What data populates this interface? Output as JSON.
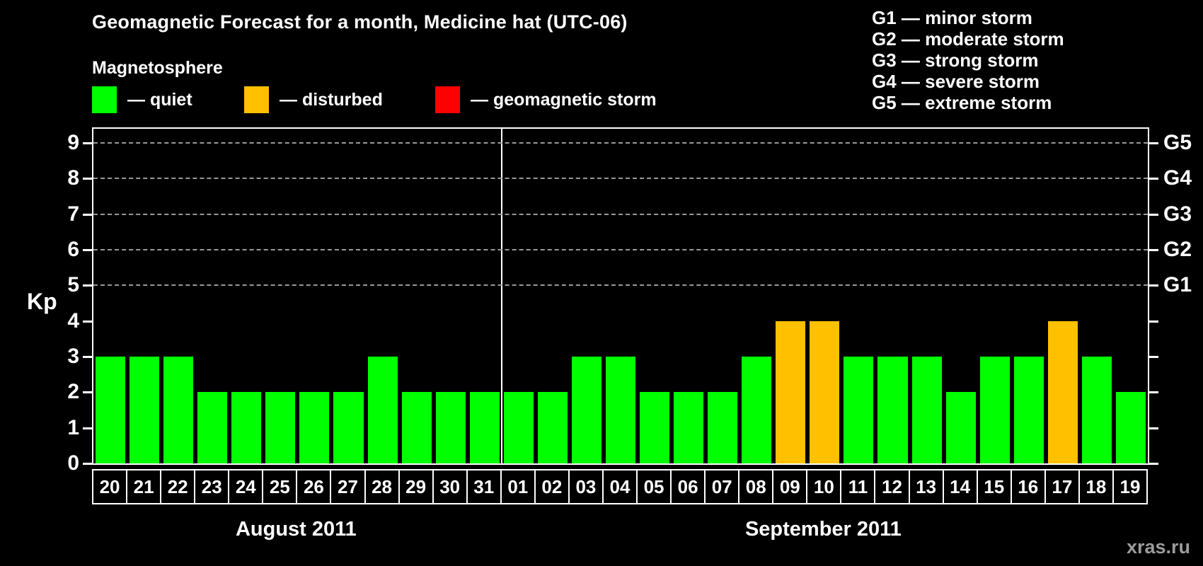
{
  "title": "Geomagnetic Forecast for a month, Medicine hat (UTC-06)",
  "legend": {
    "heading": "Magnetosphere",
    "items": [
      {
        "key": "quiet",
        "label": "— quiet"
      },
      {
        "key": "disturbed",
        "label": "— disturbed"
      },
      {
        "key": "storm",
        "label": "— geomagnetic storm"
      }
    ]
  },
  "storm_scale_legend": [
    "G1 — minor storm",
    "G2 — moderate storm",
    "G3 — strong storm",
    "G4 — severe storm",
    "G5 — extreme storm"
  ],
  "watermark": "xras.ru",
  "chart_data": {
    "type": "bar",
    "ylabel": "Kp",
    "ylim": [
      0,
      9.4
    ],
    "yticks": [
      0,
      1,
      2,
      3,
      4,
      5,
      6,
      7,
      8,
      9
    ],
    "gridlines_at": [
      5,
      6,
      7,
      8,
      9
    ],
    "right_axis_labels": [
      {
        "label": "G1",
        "kp": 5
      },
      {
        "label": "G2",
        "kp": 6
      },
      {
        "label": "G3",
        "kp": 7
      },
      {
        "label": "G4",
        "kp": 8
      },
      {
        "label": "G5",
        "kp": 9
      }
    ],
    "months": [
      {
        "label": "August 2011",
        "days": 12
      },
      {
        "label": "September 2011",
        "days": 19
      }
    ],
    "categories": [
      "20",
      "21",
      "22",
      "23",
      "24",
      "25",
      "26",
      "27",
      "28",
      "29",
      "30",
      "31",
      "01",
      "02",
      "03",
      "04",
      "05",
      "06",
      "07",
      "08",
      "09",
      "10",
      "11",
      "12",
      "13",
      "14",
      "15",
      "16",
      "17",
      "18",
      "19"
    ],
    "values": [
      3,
      3,
      3,
      2,
      2,
      2,
      2,
      2,
      3,
      2,
      2,
      2,
      2,
      2,
      3,
      3,
      2,
      2,
      2,
      3,
      4,
      4,
      3,
      3,
      3,
      2,
      3,
      3,
      4,
      3,
      2
    ],
    "states": [
      "quiet",
      "quiet",
      "quiet",
      "quiet",
      "quiet",
      "quiet",
      "quiet",
      "quiet",
      "quiet",
      "quiet",
      "quiet",
      "quiet",
      "quiet",
      "quiet",
      "quiet",
      "quiet",
      "quiet",
      "quiet",
      "quiet",
      "quiet",
      "disturbed",
      "disturbed",
      "quiet",
      "quiet",
      "quiet",
      "quiet",
      "quiet",
      "quiet",
      "disturbed",
      "quiet",
      "quiet"
    ],
    "colors": {
      "quiet": "#00ff00",
      "disturbed": "#ffc000",
      "storm": "#ff0000"
    },
    "grid_color": "#999999"
  }
}
